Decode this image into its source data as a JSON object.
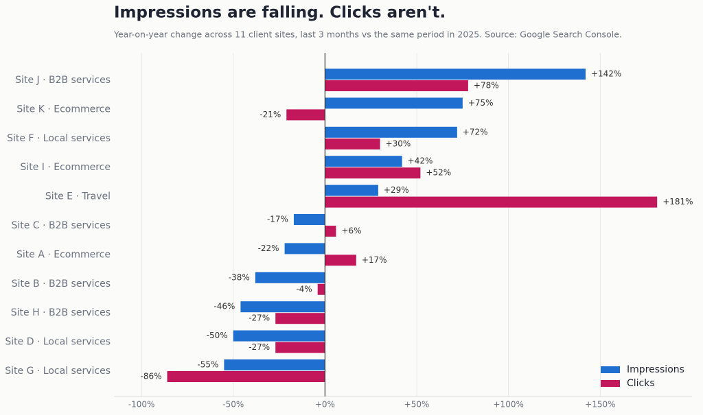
{
  "chart_data": {
    "type": "hbar",
    "title": "Impressions are falling. Clicks aren't.",
    "subtitle": "Year-on-year change across 11 client sites, last 3 months vs the same period in 2025. Source: Google Search Console.",
    "categories": [
      "Site J · B2B services",
      "Site K · Ecommerce",
      "Site F · Local services",
      "Site I · Ecommerce",
      "Site E · Travel",
      "Site C · B2B services",
      "Site A · Ecommerce",
      "Site B · B2B services",
      "Site H · B2B services",
      "Site D · Local services",
      "Site G · Local services"
    ],
    "series": [
      {
        "name": "Impressions",
        "color": "#1f6fd1",
        "values": [
          142,
          75,
          72,
          42,
          29,
          -17,
          -22,
          -38,
          -46,
          -50,
          -55
        ],
        "value_labels": [
          "+142%",
          "+75%",
          "+72%",
          "+42%",
          "+29%",
          "-17%",
          "-22%",
          "-38%",
          "-46%",
          "-50%",
          "-55%"
        ]
      },
      {
        "name": "Clicks",
        "color": "#c2185b",
        "values": [
          78,
          -21,
          30,
          52,
          181,
          6,
          17,
          -4,
          -27,
          -27,
          -86
        ],
        "value_labels": [
          "+78%",
          "-21%",
          "+30%",
          "+52%",
          "+181%",
          "+6%",
          "+17%",
          "-4%",
          "-27%",
          "-27%",
          "-86%"
        ]
      }
    ],
    "xlim": [
      -115,
      200
    ],
    "xticks": [
      {
        "value": -100,
        "label": "-100%"
      },
      {
        "value": -50,
        "label": "-50%"
      },
      {
        "value": 0,
        "label": "+0%"
      },
      {
        "value": 50,
        "label": "+50%"
      },
      {
        "value": 100,
        "label": "+100%"
      },
      {
        "value": 150,
        "label": "+150%"
      }
    ],
    "grid": true,
    "legend": "lower right"
  }
}
